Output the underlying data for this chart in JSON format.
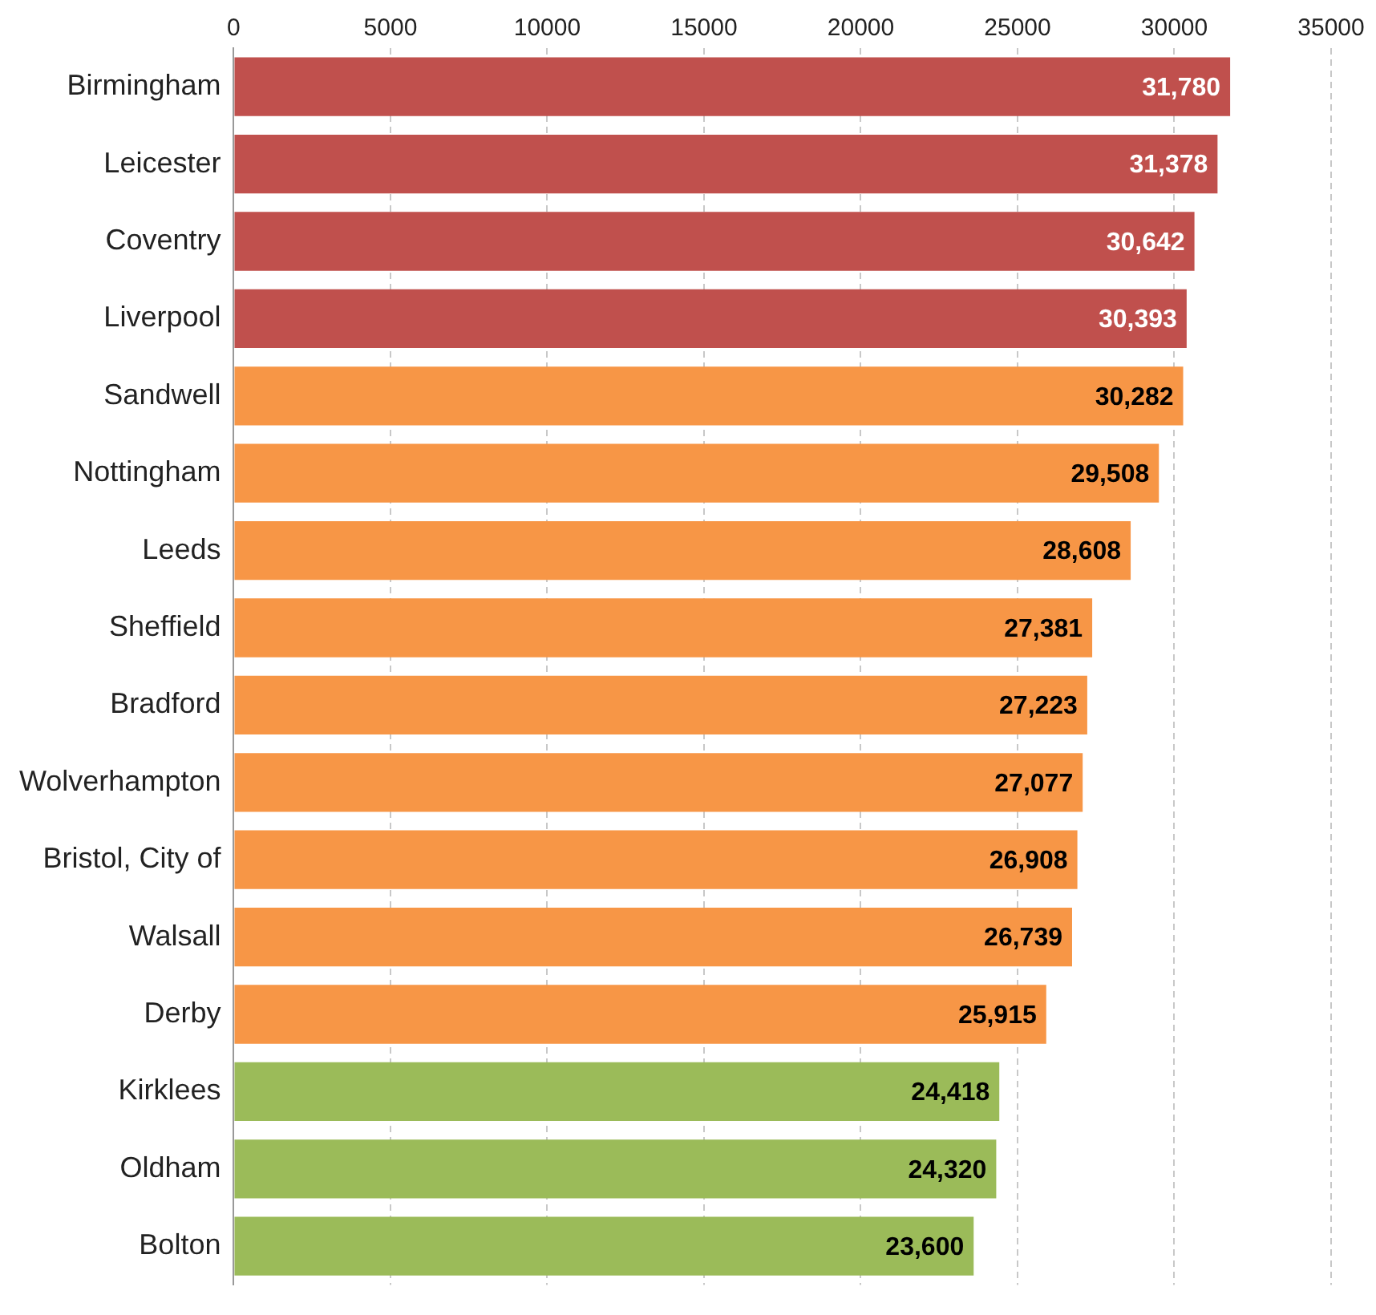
{
  "chart_data": {
    "type": "bar",
    "orientation": "horizontal",
    "categories": [
      "Birmingham",
      "Leicester",
      "Coventry",
      "Liverpool",
      "Sandwell",
      "Nottingham",
      "Leeds",
      "Sheffield",
      "Bradford",
      "Wolverhampton",
      "Bristol, City of",
      "Walsall",
      "Derby",
      "Kirklees",
      "Oldham",
      "Bolton"
    ],
    "values": [
      31780,
      31378,
      30642,
      30393,
      30282,
      29508,
      28608,
      27381,
      27223,
      27077,
      26908,
      26739,
      25915,
      24418,
      24320,
      23600
    ],
    "value_labels": [
      "31,780",
      "31,378",
      "30,642",
      "30,393",
      "30,282",
      "29,508",
      "28,608",
      "27,381",
      "27,223",
      "27,077",
      "26,908",
      "26,739",
      "25,915",
      "24,418",
      "24,320",
      "23,600"
    ],
    "colors": [
      "#c0504d",
      "#c0504d",
      "#c0504d",
      "#c0504d",
      "#f79646",
      "#f79646",
      "#f79646",
      "#f79646",
      "#f79646",
      "#f79646",
      "#f79646",
      "#f79646",
      "#f79646",
      "#9bbb59",
      "#9bbb59",
      "#9bbb59"
    ],
    "xlim": [
      0,
      35000
    ],
    "xticks": [
      0,
      5000,
      10000,
      15000,
      20000,
      25000,
      30000,
      35000
    ],
    "grid": "x",
    "legend": false
  }
}
